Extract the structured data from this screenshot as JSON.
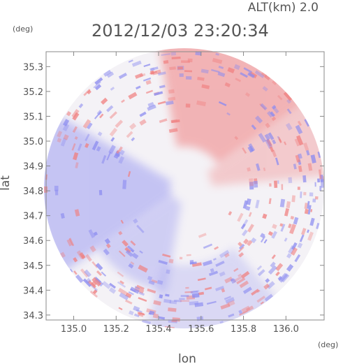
{
  "chart_data": {
    "type": "heatmap",
    "title": "2012/12/03 23:20:34",
    "altitude_label": "ALT(km) 2.0",
    "xlabel": "lon",
    "ylabel": "lat",
    "x_unit": "(deg)",
    "y_unit": "(deg)",
    "xlim": [
      134.87,
      136.18
    ],
    "ylim": [
      34.28,
      35.36
    ],
    "x_ticks": [
      135.0,
      135.2,
      135.4,
      135.6,
      135.8,
      136.0
    ],
    "x_tick_labels": [
      "135.0",
      "135.2",
      "135.4",
      "135.6",
      "135.8",
      "136.0"
    ],
    "y_ticks": [
      34.3,
      34.4,
      34.5,
      34.6,
      34.7,
      34.8,
      34.9,
      35.0,
      35.1,
      35.2,
      35.3
    ],
    "y_tick_labels": [
      "34.3",
      "34.4",
      "34.5",
      "34.6",
      "34.7",
      "34.8",
      "34.9",
      "35.0",
      "35.1",
      "35.2",
      "35.3"
    ],
    "radar_center": {
      "lon": 135.52,
      "lat": 34.81
    },
    "radar_range_deg_lon": 0.66,
    "colors": {
      "positive": "#f08080",
      "negative": "#8c8cf0",
      "neutral": "#f4f2f6",
      "axis": "#888888",
      "text": "#555555"
    },
    "grid": false
  }
}
